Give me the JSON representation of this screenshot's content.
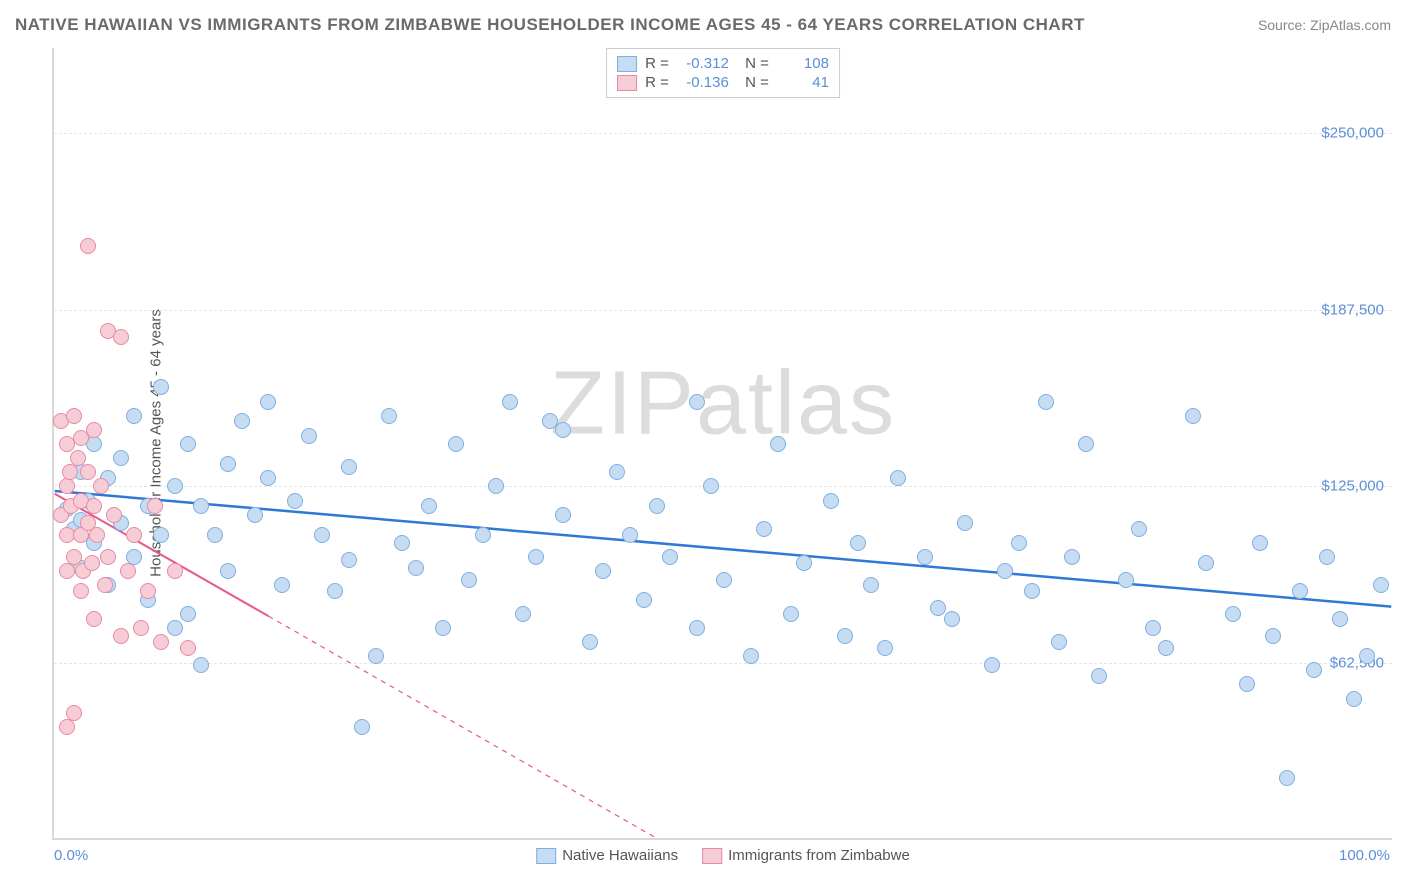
{
  "header": {
    "title": "NATIVE HAWAIIAN VS IMMIGRANTS FROM ZIMBABWE HOUSEHOLDER INCOME AGES 45 - 64 YEARS CORRELATION CHART",
    "source": "Source: ZipAtlas.com"
  },
  "chart": {
    "type": "scatter",
    "watermark": "ZIPatlas",
    "y_axis_title": "Householder Income Ages 45 - 64 years",
    "xlim": [
      0,
      100
    ],
    "ylim": [
      0,
      280000
    ],
    "x_ticks": [
      {
        "val": 0,
        "label": "0.0%"
      },
      {
        "val": 100,
        "label": "100.0%"
      }
    ],
    "y_ticks": [
      {
        "val": 62500,
        "label": "$62,500"
      },
      {
        "val": 125000,
        "label": "$125,000"
      },
      {
        "val": 187500,
        "label": "$187,500"
      },
      {
        "val": 250000,
        "label": "$250,000"
      }
    ],
    "grid_color": "#e6e6e6",
    "background_color": "#ffffff",
    "marker_radius": 8,
    "marker_border_width": 1.5,
    "series": [
      {
        "name": "Native Hawaiians",
        "fill": "#c5dcf2",
        "stroke": "#7eb0e0",
        "R": "-0.312",
        "N": "108",
        "trend": {
          "x1": 0,
          "y1": 123000,
          "x2": 100,
          "y2": 82000,
          "solid_until_x": 100,
          "color": "#2f78d4",
          "width": 2.5
        },
        "points": [
          [
            1,
            117000
          ],
          [
            1.5,
            110000
          ],
          [
            2,
            130000
          ],
          [
            2,
            96000
          ],
          [
            2,
            113000
          ],
          [
            2.5,
            120000
          ],
          [
            3,
            140000
          ],
          [
            3,
            105000
          ],
          [
            4,
            90000
          ],
          [
            4,
            128000
          ],
          [
            5,
            112000
          ],
          [
            5,
            135000
          ],
          [
            6,
            100000
          ],
          [
            6,
            150000
          ],
          [
            7,
            85000
          ],
          [
            7,
            118000
          ],
          [
            8,
            160000
          ],
          [
            8,
            108000
          ],
          [
            9,
            75000
          ],
          [
            9,
            125000
          ],
          [
            10,
            140000
          ],
          [
            10,
            80000
          ],
          [
            11,
            118000
          ],
          [
            11,
            62000
          ],
          [
            12,
            108000
          ],
          [
            13,
            133000
          ],
          [
            13,
            95000
          ],
          [
            14,
            148000
          ],
          [
            15,
            115000
          ],
          [
            16,
            155000
          ],
          [
            16,
            128000
          ],
          [
            17,
            90000
          ],
          [
            18,
            120000
          ],
          [
            19,
            143000
          ],
          [
            20,
            108000
          ],
          [
            21,
            88000
          ],
          [
            22,
            132000
          ],
          [
            22,
            99000
          ],
          [
            23,
            40000
          ],
          [
            24,
            65000
          ],
          [
            25,
            150000
          ],
          [
            26,
            105000
          ],
          [
            27,
            96000
          ],
          [
            28,
            118000
          ],
          [
            29,
            75000
          ],
          [
            30,
            140000
          ],
          [
            31,
            92000
          ],
          [
            32,
            108000
          ],
          [
            33,
            125000
          ],
          [
            34,
            155000
          ],
          [
            35,
            80000
          ],
          [
            36,
            100000
          ],
          [
            37,
            148000
          ],
          [
            38,
            145000
          ],
          [
            38,
            115000
          ],
          [
            40,
            70000
          ],
          [
            41,
            95000
          ],
          [
            42,
            130000
          ],
          [
            43,
            108000
          ],
          [
            44,
            85000
          ],
          [
            45,
            118000
          ],
          [
            46,
            100000
          ],
          [
            48,
            155000
          ],
          [
            48,
            75000
          ],
          [
            49,
            125000
          ],
          [
            50,
            92000
          ],
          [
            52,
            65000
          ],
          [
            53,
            110000
          ],
          [
            54,
            140000
          ],
          [
            55,
            80000
          ],
          [
            56,
            98000
          ],
          [
            58,
            120000
          ],
          [
            59,
            72000
          ],
          [
            60,
            105000
          ],
          [
            61,
            90000
          ],
          [
            62,
            68000
          ],
          [
            63,
            128000
          ],
          [
            65,
            100000
          ],
          [
            66,
            82000
          ],
          [
            67,
            78000
          ],
          [
            68,
            112000
          ],
          [
            70,
            62000
          ],
          [
            71,
            95000
          ],
          [
            72,
            105000
          ],
          [
            73,
            88000
          ],
          [
            74,
            155000
          ],
          [
            75,
            70000
          ],
          [
            76,
            100000
          ],
          [
            77,
            140000
          ],
          [
            78,
            58000
          ],
          [
            80,
            92000
          ],
          [
            81,
            110000
          ],
          [
            82,
            75000
          ],
          [
            83,
            68000
          ],
          [
            85,
            150000
          ],
          [
            86,
            98000
          ],
          [
            88,
            80000
          ],
          [
            89,
            55000
          ],
          [
            90,
            105000
          ],
          [
            91,
            72000
          ],
          [
            92,
            22000
          ],
          [
            93,
            88000
          ],
          [
            94,
            60000
          ],
          [
            95,
            100000
          ],
          [
            96,
            78000
          ],
          [
            97,
            50000
          ],
          [
            98,
            65000
          ],
          [
            99,
            90000
          ]
        ]
      },
      {
        "name": "Immigrants from Zimbabwe",
        "fill": "#f6cdd7",
        "stroke": "#e88aa4",
        "R": "-0.136",
        "N": "41",
        "trend": {
          "x1": 0,
          "y1": 122000,
          "x2": 45,
          "y2": 0,
          "solid_until_x": 16,
          "color": "#e65a88",
          "width": 2
        },
        "points": [
          [
            0.5,
            148000
          ],
          [
            0.5,
            115000
          ],
          [
            1,
            125000
          ],
          [
            1,
            140000
          ],
          [
            1,
            108000
          ],
          [
            1,
            95000
          ],
          [
            1.2,
            130000
          ],
          [
            1.3,
            118000
          ],
          [
            1.5,
            150000
          ],
          [
            1.5,
            100000
          ],
          [
            1.8,
            135000
          ],
          [
            2,
            120000
          ],
          [
            2,
            88000
          ],
          [
            2,
            108000
          ],
          [
            2,
            142000
          ],
          [
            2.2,
            95000
          ],
          [
            2.5,
            130000
          ],
          [
            2.5,
            112000
          ],
          [
            2.8,
            98000
          ],
          [
            3,
            145000
          ],
          [
            3,
            118000
          ],
          [
            3,
            78000
          ],
          [
            3.2,
            108000
          ],
          [
            3.5,
            125000
          ],
          [
            3.8,
            90000
          ],
          [
            4,
            180000
          ],
          [
            4,
            100000
          ],
          [
            4.5,
            115000
          ],
          [
            5,
            178000
          ],
          [
            5,
            72000
          ],
          [
            5.5,
            95000
          ],
          [
            6,
            108000
          ],
          [
            6.5,
            75000
          ],
          [
            7,
            88000
          ],
          [
            7.5,
            118000
          ],
          [
            8,
            70000
          ],
          [
            9,
            95000
          ],
          [
            10,
            68000
          ],
          [
            1,
            40000
          ],
          [
            1.5,
            45000
          ],
          [
            2.5,
            210000
          ]
        ]
      }
    ]
  },
  "legend_bottom": [
    {
      "label": "Native Hawaiians",
      "fill": "#c5dcf2",
      "stroke": "#7eb0e0"
    },
    {
      "label": "Immigrants from Zimbabwe",
      "fill": "#f6cdd7",
      "stroke": "#e88aa4"
    }
  ]
}
